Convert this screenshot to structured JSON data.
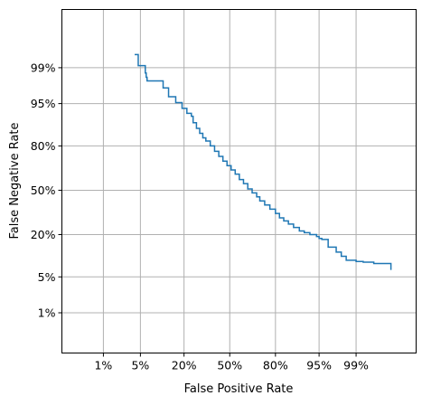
{
  "chart_data": {
    "type": "line",
    "title": "",
    "xlabel": "False Positive Rate",
    "ylabel": "False Negative Rate",
    "x_scale": "probit",
    "y_scale": "probit",
    "xlim": [
      0.001,
      0.9997
    ],
    "ylim": [
      0.001,
      0.9997
    ],
    "x_ticks": [
      {
        "value": 0.01,
        "label": "1%"
      },
      {
        "value": 0.05,
        "label": "5%"
      },
      {
        "value": 0.2,
        "label": "20%"
      },
      {
        "value": 0.5,
        "label": "50%"
      },
      {
        "value": 0.8,
        "label": "80%"
      },
      {
        "value": 0.95,
        "label": "95%"
      },
      {
        "value": 0.99,
        "label": "99%"
      }
    ],
    "y_ticks": [
      {
        "value": 0.01,
        "label": "1%"
      },
      {
        "value": 0.05,
        "label": "5%"
      },
      {
        "value": 0.2,
        "label": "20%"
      },
      {
        "value": 0.5,
        "label": "50%"
      },
      {
        "value": 0.8,
        "label": "80%"
      },
      {
        "value": 0.95,
        "label": "95%"
      },
      {
        "value": 0.99,
        "label": "99%"
      }
    ],
    "grid": true,
    "series": [
      {
        "color": "#1f77b4",
        "step": true,
        "x": [
          0.04,
          0.046,
          0.046,
          0.046,
          0.06,
          0.06,
          0.062,
          0.064,
          0.064,
          0.11,
          0.11,
          0.13,
          0.13,
          0.16,
          0.16,
          0.19,
          0.19,
          0.215,
          0.215,
          0.24,
          0.25,
          0.27,
          0.29,
          0.31,
          0.33,
          0.36,
          0.39,
          0.42,
          0.45,
          0.48,
          0.51,
          0.54,
          0.57,
          0.6,
          0.63,
          0.66,
          0.69,
          0.71,
          0.74,
          0.77,
          0.8,
          0.82,
          0.84,
          0.86,
          0.88,
          0.9,
          0.915,
          0.93,
          0.945,
          0.95,
          0.955,
          0.965,
          0.965,
          0.975,
          0.975,
          0.98,
          0.98,
          0.984,
          0.984,
          0.99,
          0.99,
          0.993,
          0.993,
          0.996,
          0.996,
          0.9985,
          0.9985
        ],
        "y": [
          0.995,
          0.995,
          0.993,
          0.991,
          0.991,
          0.987,
          0.984,
          0.981,
          0.981,
          0.981,
          0.974,
          0.974,
          0.962,
          0.962,
          0.952,
          0.952,
          0.94,
          0.94,
          0.928,
          0.92,
          0.9,
          0.88,
          0.86,
          0.84,
          0.825,
          0.8,
          0.77,
          0.74,
          0.71,
          0.68,
          0.65,
          0.62,
          0.58,
          0.55,
          0.51,
          0.48,
          0.45,
          0.42,
          0.39,
          0.36,
          0.33,
          0.3,
          0.28,
          0.26,
          0.24,
          0.22,
          0.21,
          0.2,
          0.19,
          0.18,
          0.175,
          0.175,
          0.14,
          0.14,
          0.12,
          0.12,
          0.105,
          0.105,
          0.092,
          0.092,
          0.088,
          0.088,
          0.086,
          0.086,
          0.082,
          0.082,
          0.065
        ]
      }
    ]
  }
}
